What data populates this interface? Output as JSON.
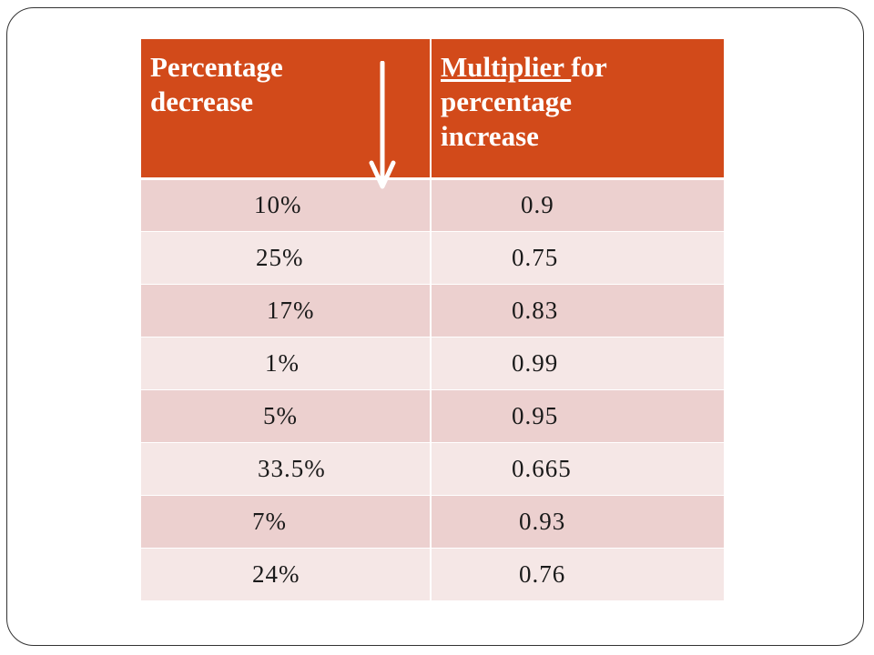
{
  "table": {
    "headers": {
      "col1_line1": "Percentage",
      "col1_line2": "decrease",
      "col2_underlined": "Multiplier ",
      "col2_rest_line1": "for",
      "col2_line2": "percentage",
      "col2_line3": "increase"
    },
    "rows": [
      {
        "percentage": "10%",
        "multiplier": "0.9"
      },
      {
        "percentage": "25%",
        "multiplier": "0.75"
      },
      {
        "percentage": "17%",
        "multiplier": "0.83"
      },
      {
        "percentage": "1%",
        "multiplier": "0.99"
      },
      {
        "percentage": "5%",
        "multiplier": "0.95"
      },
      {
        "percentage": "33.5%",
        "multiplier": "0.665"
      },
      {
        "percentage": "7%",
        "multiplier": "0.93"
      },
      {
        "percentage": "24%",
        "multiplier": "0.76"
      }
    ]
  },
  "icons": {
    "header_arrow": "down-arrow-icon"
  },
  "colors": {
    "header_bg": "#d24a1a",
    "row_odd_bg": "#ecd0cf",
    "row_even_bg": "#f5e7e6",
    "header_text": "#ffffff"
  }
}
